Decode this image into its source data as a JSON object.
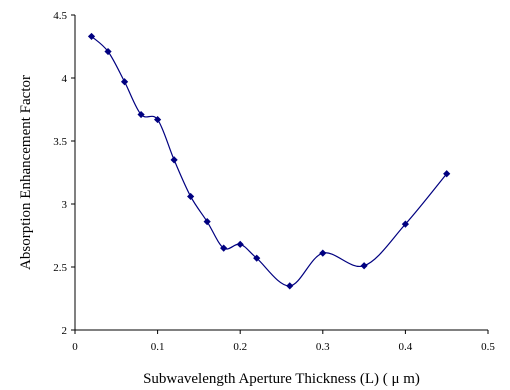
{
  "chart_data": {
    "type": "line",
    "title": "",
    "xlabel": "Subwavelength Aperture Thickness (L) ( μ m)",
    "ylabel": "Absorption Enhancement Factor",
    "xlim": [
      0,
      0.5
    ],
    "ylim": [
      2,
      4.5
    ],
    "xticks": [
      "0",
      "0.1",
      "0.2",
      "0.3",
      "0.4",
      "0.5"
    ],
    "yticks": [
      "2",
      "2.5",
      "3",
      "3.5",
      "4",
      "4.5"
    ],
    "grid": false,
    "legend": "none",
    "smooth": true,
    "series": [
      {
        "color": "#000080",
        "marker": "diamond",
        "x": [
          0.02,
          0.04,
          0.06,
          0.08,
          0.1,
          0.12,
          0.14,
          0.16,
          0.18,
          0.2,
          0.22,
          0.26,
          0.3,
          0.35,
          0.4,
          0.45
        ],
        "y": [
          4.33,
          4.21,
          3.97,
          3.71,
          3.67,
          3.35,
          3.06,
          2.86,
          2.65,
          2.68,
          2.57,
          2.35,
          2.61,
          2.51,
          2.84,
          3.24
        ]
      }
    ]
  }
}
